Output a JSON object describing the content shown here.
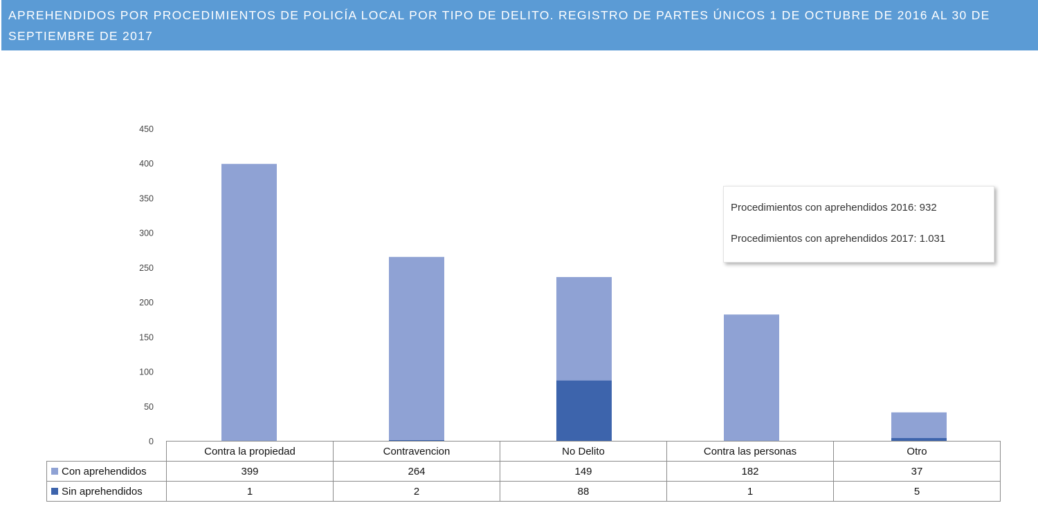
{
  "header": {
    "title": "APREHENDIDOS POR PROCEDIMIENTOS DE POLICÍA LOCAL POR TIPO DE DELITO. REGISTRO DE PARTES ÚNICOS 1 DE OCTUBRE DE 2016 AL 30 DE SEPTIEMBRE DE 2017"
  },
  "note": {
    "line1": "Procedimientos con aprehendidos 2016: 932",
    "line2": "Procedimientos con aprehendidos 2017: 1.031"
  },
  "colors": {
    "header_bg": "#5b9bd5",
    "con_aprehendidos": "#8fa2d4",
    "sin_aprehendidos": "#3d64ac"
  },
  "chart_data": {
    "type": "bar",
    "stacked": true,
    "categories": [
      "Contra la propiedad",
      "Contravencion",
      "No Delito",
      "Contra las personas",
      "Otro"
    ],
    "series": [
      {
        "name": "Con aprehendidos",
        "values": [
          399,
          264,
          149,
          182,
          37
        ]
      },
      {
        "name": "Sin aprehendidos",
        "values": [
          1,
          2,
          88,
          1,
          5
        ]
      }
    ],
    "yticks": [
      "0",
      "50",
      "100",
      "150",
      "200",
      "250",
      "300",
      "350",
      "400",
      "450"
    ],
    "ylim": [
      0,
      450
    ],
    "grid": false,
    "legend": "data table below chart"
  },
  "table": {
    "rows": [
      {
        "label": "Con aprehendidos",
        "values": [
          "399",
          "264",
          "149",
          "182",
          "37"
        ]
      },
      {
        "label": "Sin aprehendidos",
        "values": [
          "1",
          "2",
          "88",
          "1",
          "5"
        ]
      }
    ]
  }
}
